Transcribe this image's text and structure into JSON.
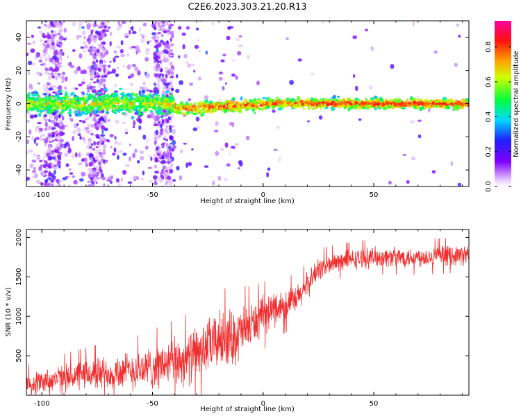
{
  "title": "C2E6.2023.303.21.20.R13",
  "chart_data": [
    {
      "type": "heatmap",
      "title": "C2E6.2023.303.21.20.R13",
      "xlabel": "Height of straight line (km)",
      "ylabel": "Frequency (Hz)",
      "xlim": [
        -107,
        93
      ],
      "ylim": [
        -50,
        50
      ],
      "xticks": [
        -100,
        -50,
        0,
        50
      ],
      "yticks": [
        -40,
        -20,
        0,
        20,
        40
      ],
      "colorbar": {
        "label": "Normalized spectral amplitude",
        "range": [
          0,
          0.95
        ],
        "ticks": [
          0.0,
          0.2,
          0.4,
          0.6,
          0.8
        ],
        "colormap": "rainbow (white → violet → blue → cyan → green → yellow → red → magenta)"
      },
      "features": [
        {
          "description": "dominant band centred near 0 Hz across full height range",
          "freq_center_hz": 0
        },
        {
          "description": "broadband scatter at low heights",
          "x_range": [
            -107,
            -40
          ]
        },
        {
          "description": "vertical streaks",
          "x_values": [
            -95,
            -75,
            -45
          ]
        }
      ]
    },
    {
      "type": "line",
      "xlabel": "Height of straight line (km)",
      "ylabel": "SNR (10 * v/v)",
      "xlim": [
        -107,
        93
      ],
      "ylim": [
        0,
        2100
      ],
      "xticks": [
        -100,
        -50,
        0,
        50
      ],
      "yticks": [
        500,
        1000,
        1500,
        2000
      ],
      "color": "#f03030",
      "series": [
        {
          "trend_x": [
            -107,
            -80,
            -55,
            -35,
            -20,
            -12,
            -5,
            5,
            15,
            25,
            35,
            50,
            70,
            93
          ],
          "trend_y": [
            150,
            260,
            320,
            450,
            700,
            750,
            900,
            1100,
            1200,
            1600,
            1700,
            1750,
            1750,
            1780
          ],
          "amplitude_y": [
            160,
            230,
            300,
            380,
            430,
            420,
            320,
            260,
            220,
            170,
            150,
            150,
            150,
            150
          ]
        }
      ]
    }
  ]
}
